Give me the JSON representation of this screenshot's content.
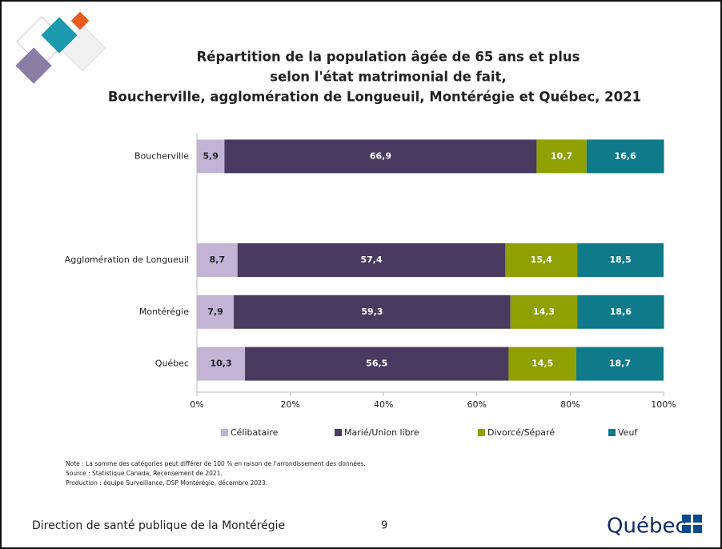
{
  "chart_data": {
    "type": "stacked_bar_horizontal",
    "title": [
      "Répartition de la population âgée de 65 ans et plus",
      "selon l'état matrimonial de fait,",
      "Boucherville, agglomération de Longueuil, Montérégie et Québec, 2021"
    ],
    "categories": [
      "Boucherville",
      null,
      "Agglomération de Longueuil",
      "Montérégie",
      "Québec"
    ],
    "series": [
      {
        "name": "Célibataire",
        "color": "#c3b4d6",
        "label_color": "#222222",
        "values": [
          5.9,
          null,
          8.7,
          7.9,
          10.3
        ],
        "value_labels": [
          "5,9",
          null,
          "8,7",
          "7,9",
          "10,3"
        ]
      },
      {
        "name": "Marié/Union libre",
        "color": "#4b3a5f",
        "label_color": "#ffffff",
        "values": [
          66.9,
          null,
          57.4,
          59.3,
          56.5
        ],
        "value_labels": [
          "66,9",
          null,
          "57,4",
          "59,3",
          "56,5"
        ]
      },
      {
        "name": "Divorcé/Séparé",
        "color": "#8fa000",
        "label_color": "#ffffff",
        "values": [
          10.7,
          null,
          15.4,
          14.3,
          14.5
        ],
        "value_labels": [
          "10,7",
          null,
          "15,4",
          "14,3",
          "14,5"
        ]
      },
      {
        "name": "Veuf",
        "color": "#0e7a8a",
        "label_color": "#ffffff",
        "values": [
          16.6,
          null,
          18.5,
          18.6,
          18.7
        ],
        "value_labels": [
          "16,6",
          null,
          "18,5",
          "18,6",
          "18,7"
        ]
      }
    ],
    "xlim": [
      0,
      100
    ],
    "xticks": [
      {
        "value": 0,
        "label": "0%"
      },
      {
        "value": 20,
        "label": "20%"
      },
      {
        "value": 40,
        "label": "40%"
      },
      {
        "value": 60,
        "label": "60%"
      },
      {
        "value": 80,
        "label": "80%"
      },
      {
        "value": 100,
        "label": "100%"
      }
    ],
    "legend": "bottom",
    "grid": false
  },
  "notes": [
    "Note : La somme des catégories peut différer de 100 % en raison de l'arrondissement des données.",
    "Source : Statistique Canada, Recensement de 2021.",
    "Production : équipe Surveillance, DSP Montérégie, décembre 2023."
  ],
  "footer": {
    "organization": "Direction de santé publique de la Montérégie",
    "page": "9",
    "logo": "Québec"
  }
}
